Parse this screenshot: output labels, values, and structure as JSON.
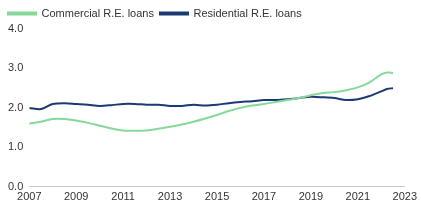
{
  "chart_data": {
    "type": "line",
    "x": [
      2007,
      2007.5,
      2008,
      2008.5,
      2009,
      2009.5,
      2010,
      2010.5,
      2011,
      2011.5,
      2012,
      2012.5,
      2013,
      2013.5,
      2014,
      2014.5,
      2015,
      2015.5,
      2016,
      2016.5,
      2017,
      2017.5,
      2018,
      2018.5,
      2019,
      2019.5,
      2020,
      2020.5,
      2021,
      2021.5,
      2022,
      2022.25,
      2022.5
    ],
    "series": [
      {
        "name": "Commercial R.E. loans",
        "color": "#86d99b",
        "values": [
          1.6,
          1.65,
          1.72,
          1.72,
          1.68,
          1.62,
          1.55,
          1.48,
          1.43,
          1.42,
          1.43,
          1.47,
          1.52,
          1.58,
          1.65,
          1.73,
          1.82,
          1.92,
          2.0,
          2.06,
          2.1,
          2.15,
          2.2,
          2.25,
          2.32,
          2.38,
          2.4,
          2.45,
          2.52,
          2.65,
          2.85,
          2.9,
          2.88
        ]
      },
      {
        "name": "Residential R.E. loans",
        "color": "#1b3a73",
        "values": [
          2.0,
          1.97,
          2.1,
          2.12,
          2.1,
          2.08,
          2.05,
          2.07,
          2.1,
          2.1,
          2.08,
          2.08,
          2.05,
          2.05,
          2.08,
          2.06,
          2.08,
          2.12,
          2.15,
          2.17,
          2.2,
          2.2,
          2.22,
          2.25,
          2.28,
          2.27,
          2.25,
          2.2,
          2.22,
          2.3,
          2.42,
          2.48,
          2.5
        ]
      }
    ],
    "xlim": [
      2007,
      2023
    ],
    "xticks": [
      2007,
      2009,
      2011,
      2013,
      2015,
      2017,
      2019,
      2021,
      2023
    ],
    "ylim": [
      0,
      4
    ],
    "yticks": [
      {
        "value": 0,
        "label": "0.0"
      },
      {
        "value": 1,
        "label": "1.0"
      },
      {
        "value": 2,
        "label": "2.0"
      },
      {
        "value": 3,
        "label": "3.0"
      },
      {
        "value": 4,
        "label": "4.0"
      }
    ],
    "grid": false,
    "legend": "upper left"
  }
}
